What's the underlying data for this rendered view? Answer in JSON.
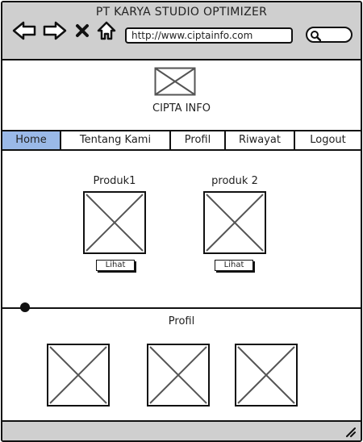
{
  "window": {
    "title": "PT KARYA STUDIO OPTIMIZER"
  },
  "browser": {
    "url": "http://www.ciptainfo.com"
  },
  "header": {
    "brand": "CIPTA INFO"
  },
  "menu": [
    {
      "label": "Home",
      "active": true
    },
    {
      "label": "Tentang Kami",
      "active": false
    },
    {
      "label": "Profil",
      "active": false
    },
    {
      "label": "Riwayat",
      "active": false
    },
    {
      "label": "Logout",
      "active": false
    }
  ],
  "products": [
    {
      "name": "Produk1",
      "button_label": "Lihat"
    },
    {
      "name": "produk 2",
      "button_label": "Lihat"
    }
  ],
  "profil_section": {
    "title": "Profil"
  },
  "colors": {
    "titlebar": "#cfcfcf",
    "active_menu": "#9ab9e8",
    "border": "#111111"
  },
  "icons": [
    "back-arrow-icon",
    "forward-arrow-icon",
    "close-icon",
    "home-icon",
    "search-icon",
    "image-placeholder-icon",
    "resize-grip-icon"
  ]
}
